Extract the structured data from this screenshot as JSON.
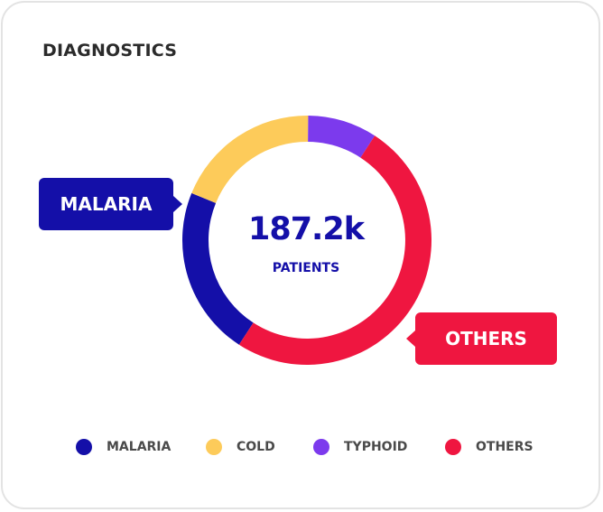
{
  "card": {
    "title": "DIAGNOSTICS"
  },
  "center": {
    "value": "187.2k",
    "label": "PATIENTS"
  },
  "callouts": {
    "malaria": "MALARIA",
    "others": "OTHERS"
  },
  "colors": {
    "malaria": "#140fa8",
    "cold": "#fdcb5a",
    "typhoid": "#7c3aed",
    "others": "#ef1640"
  },
  "chart_data": {
    "type": "pie",
    "variant": "donut",
    "title": "DIAGNOSTICS",
    "center_total": "187.2k",
    "center_label": "PATIENTS",
    "categories": [
      "MALARIA",
      "COLD",
      "TYPHOID",
      "OTHERS"
    ],
    "values": [
      22,
      19,
      9,
      50
    ],
    "unit": "percent_estimated",
    "legend": "bottom"
  }
}
